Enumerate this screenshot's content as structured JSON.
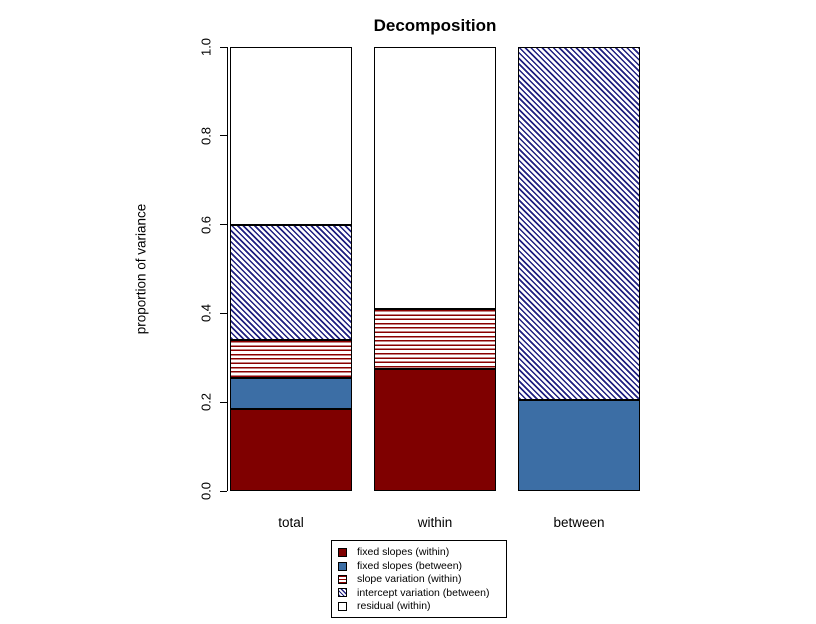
{
  "title": "Decomposition",
  "y_axis": {
    "label": "proportion of variance",
    "ticks": [
      "0.0",
      "0.2",
      "0.4",
      "0.6",
      "0.8",
      "1.0"
    ],
    "tick_values": [
      0,
      0.2,
      0.4,
      0.6,
      0.8,
      1.0
    ]
  },
  "colors": {
    "dark_red": "#7f0000",
    "stripe_red": "#8b0000",
    "steel_blue": "#3c6ea5",
    "hatch_navy": "#1f1f80",
    "white": "#ffffff",
    "border": "#000000"
  },
  "chart_data": {
    "type": "bar",
    "stacked": true,
    "title": "Decomposition",
    "xlabel": "",
    "ylabel": "proportion of variance",
    "ylim": [
      0,
      1
    ],
    "grid": false,
    "legend_position": "bottom-center-boxed",
    "categories": [
      "total",
      "within",
      "between"
    ],
    "series": [
      {
        "name": "fixed slopes (within)",
        "style": "solid",
        "color": "#7f0000",
        "values": [
          0.185,
          0.275,
          0
        ]
      },
      {
        "name": "fixed slopes (between)",
        "style": "solid",
        "color": "#3c6ea5",
        "values": [
          0.07,
          0,
          0.205
        ]
      },
      {
        "name": "slope variation (within)",
        "style": "hlines",
        "color": "#8b0000",
        "values": [
          0.085,
          0.135,
          0
        ]
      },
      {
        "name": "intercept variation (between)",
        "style": "diag",
        "color": "#1f1f80",
        "values": [
          0.26,
          0,
          0.795
        ]
      },
      {
        "name": "residual (within)",
        "style": "white",
        "color": "#ffffff",
        "values": [
          0.4,
          0.59,
          0
        ]
      }
    ]
  }
}
